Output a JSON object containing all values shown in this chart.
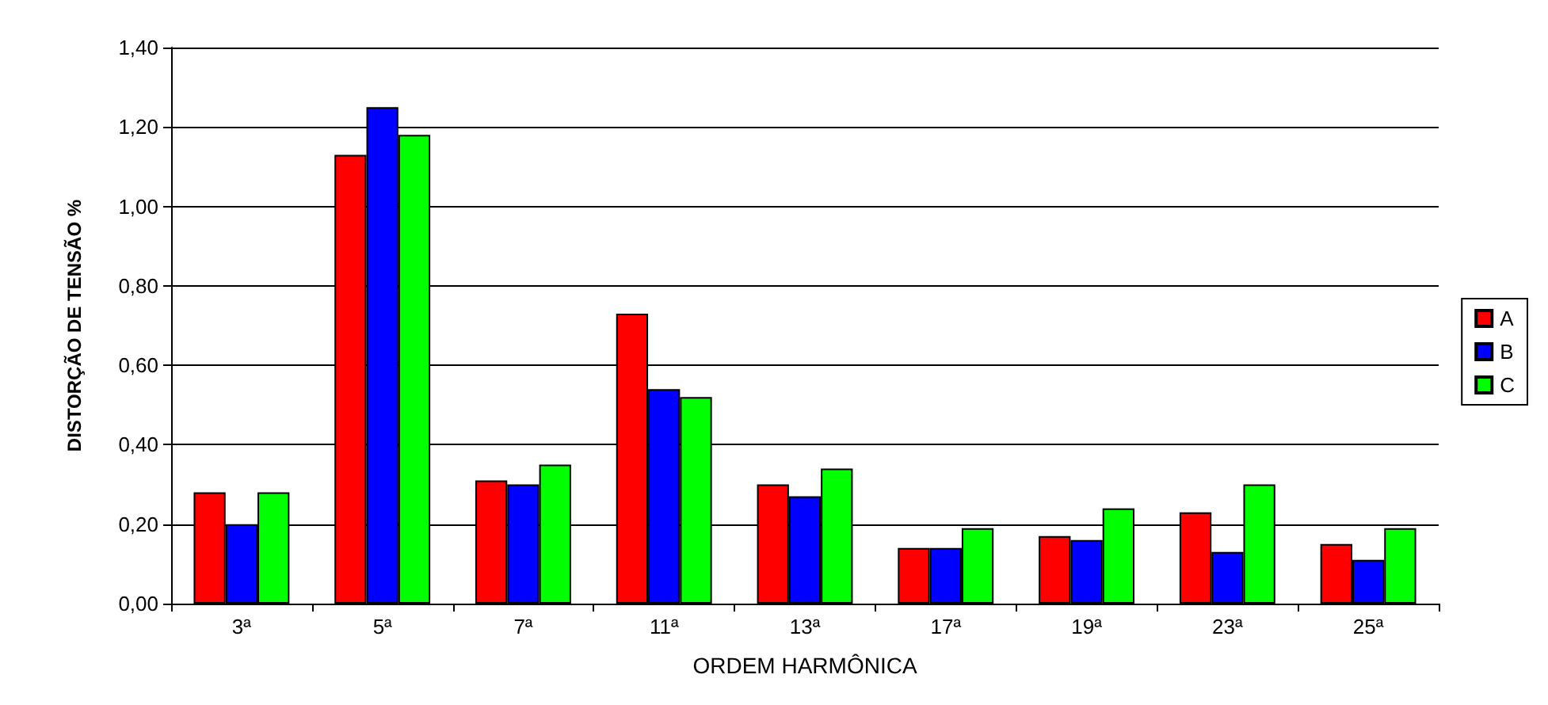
{
  "chart_data": {
    "type": "bar",
    "xlabel": "ORDEM HARMÔNICA",
    "ylabel": "DISTORÇÃO DE TENSÃO %",
    "categories": [
      "3ª",
      "5ª",
      "7ª",
      "11ª",
      "13ª",
      "17ª",
      "19ª",
      "23ª",
      "25ª"
    ],
    "series": [
      {
        "name": "A",
        "color": "#ff0000",
        "values": [
          0.28,
          1.13,
          0.31,
          0.73,
          0.3,
          0.14,
          0.17,
          0.23,
          0.15
        ]
      },
      {
        "name": "B",
        "color": "#0000ff",
        "values": [
          0.2,
          1.25,
          0.3,
          0.54,
          0.27,
          0.14,
          0.16,
          0.13,
          0.11
        ]
      },
      {
        "name": "C",
        "color": "#00ff00",
        "values": [
          0.28,
          1.18,
          0.35,
          0.52,
          0.34,
          0.19,
          0.24,
          0.3,
          0.19
        ]
      }
    ],
    "ylim": [
      0,
      1.4
    ],
    "yticks": [
      {
        "value": 0,
        "label": "0,00"
      },
      {
        "value": 0.2,
        "label": "0,20"
      },
      {
        "value": 0.4,
        "label": "0,40"
      },
      {
        "value": 0.6,
        "label": "0,60"
      },
      {
        "value": 0.8,
        "label": "0,80"
      },
      {
        "value": 1.0,
        "label": "1,00"
      },
      {
        "value": 1.2,
        "label": "1,20"
      },
      {
        "value": 1.4,
        "label": "1,40"
      }
    ],
    "grid": "y",
    "legend": "right"
  }
}
